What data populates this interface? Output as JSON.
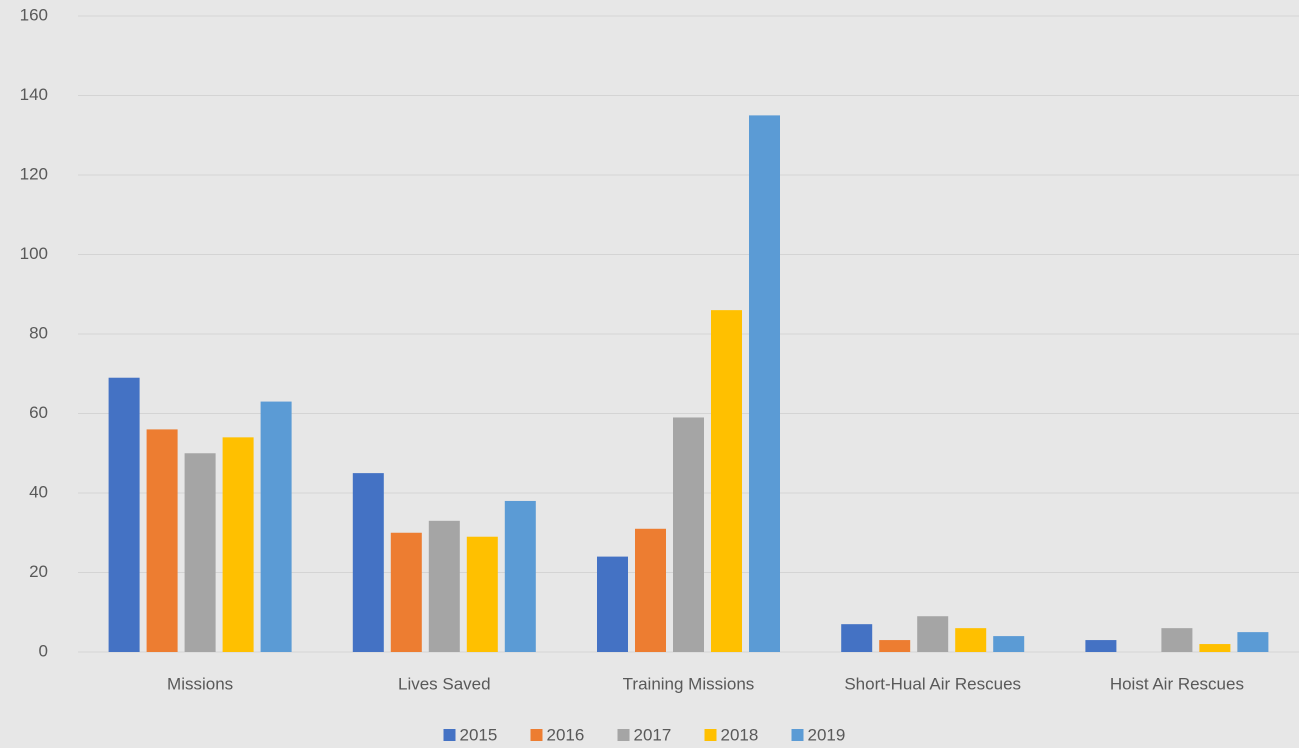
{
  "chart_data": {
    "type": "bar",
    "categories": [
      "Missions",
      "Lives Saved",
      "Training Missions",
      "Short-Hual Air Rescues",
      "Hoist Air Rescues"
    ],
    "series": [
      {
        "name": "2015",
        "color": "#4472c4",
        "values": [
          69,
          45,
          24,
          7,
          3
        ]
      },
      {
        "name": "2016",
        "color": "#ed7d31",
        "values": [
          56,
          30,
          31,
          3,
          0
        ]
      },
      {
        "name": "2017",
        "color": "#a5a5a5",
        "values": [
          50,
          33,
          59,
          9,
          6
        ]
      },
      {
        "name": "2018",
        "color": "#ffc000",
        "values": [
          54,
          29,
          86,
          6,
          2
        ]
      },
      {
        "name": "2019",
        "color": "#5b9bd5",
        "values": [
          63,
          38,
          135,
          4,
          5
        ]
      }
    ],
    "ylim": [
      0,
      160
    ],
    "yticks": [
      0,
      20,
      40,
      60,
      80,
      100,
      120,
      140,
      160
    ],
    "grid": true,
    "legend": "bottom"
  }
}
